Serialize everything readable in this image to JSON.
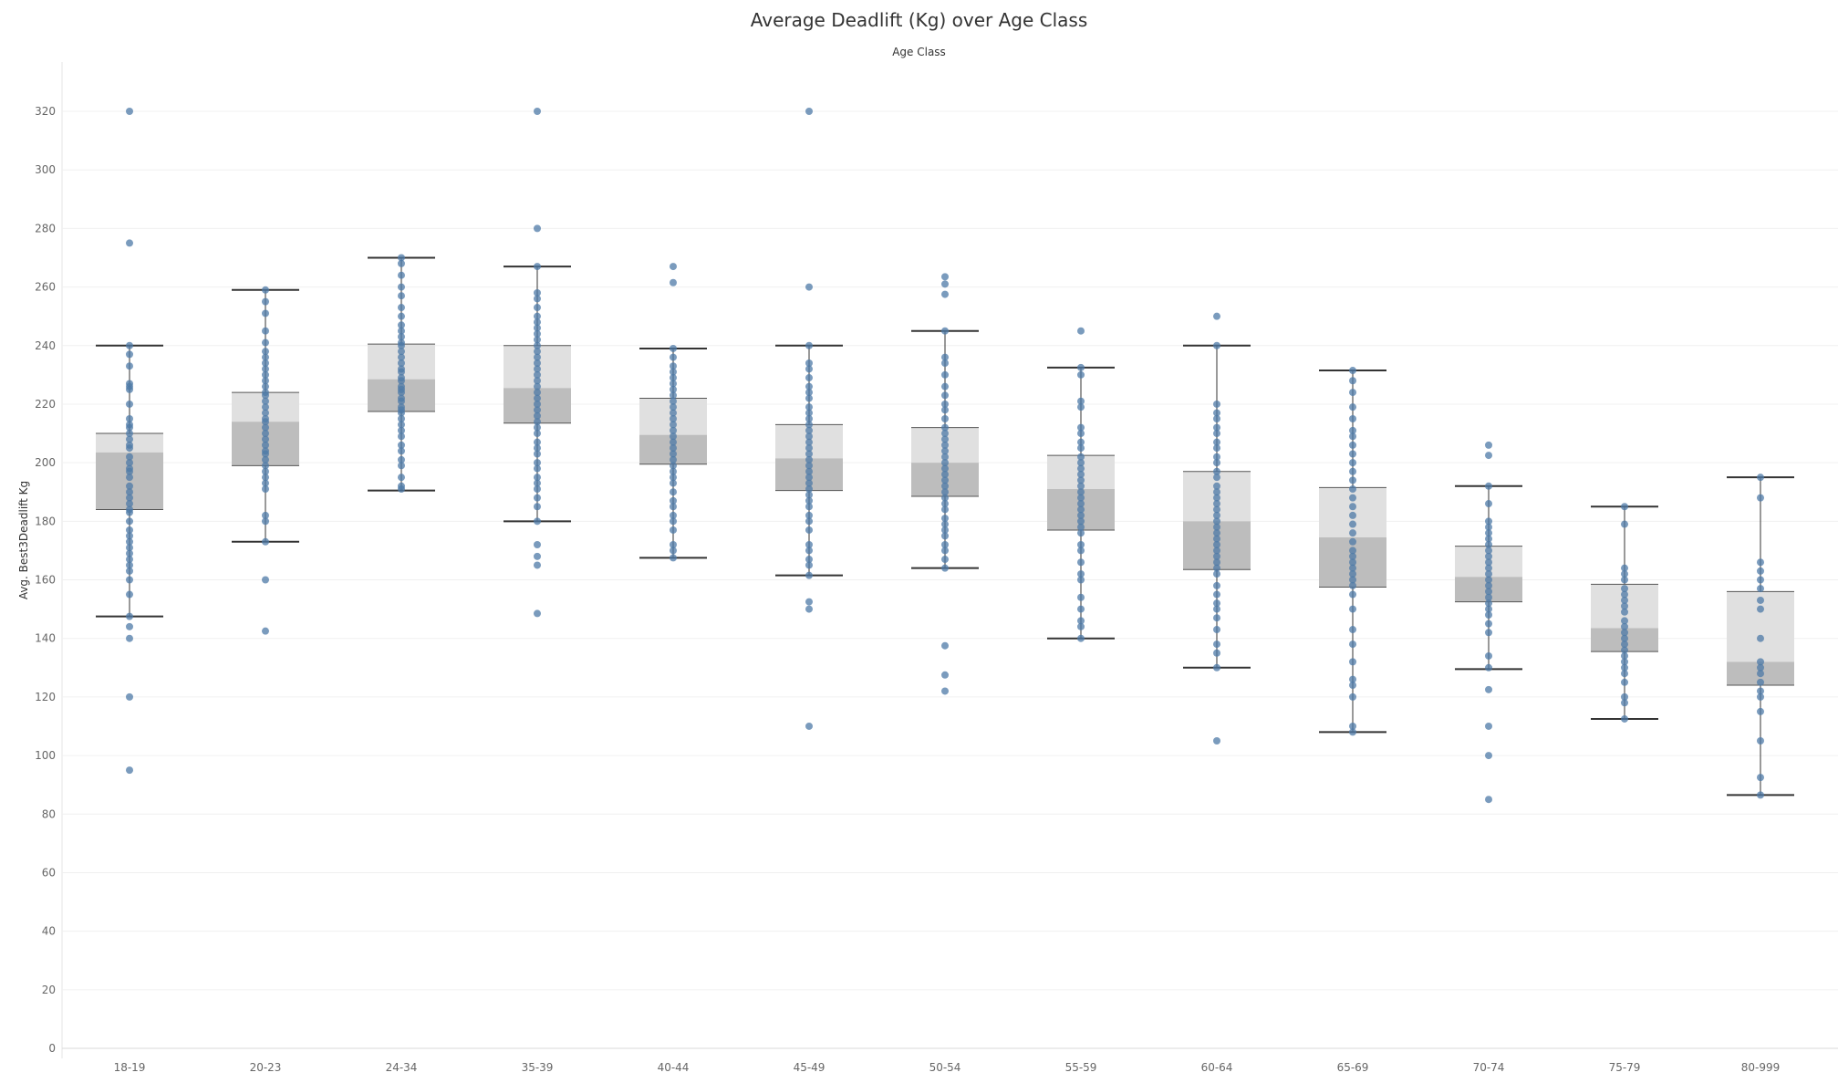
{
  "chart_data": {
    "type": "boxplot",
    "title": "Average Deadlift (Kg) over Age Class",
    "xlabel": "Age Class",
    "ylabel": "Avg. Best3Deadlift Kg",
    "ylim": [
      0,
      330
    ],
    "yticks": [
      0,
      20,
      40,
      60,
      80,
      100,
      120,
      140,
      160,
      180,
      200,
      220,
      240,
      260,
      280,
      300,
      320
    ],
    "grid": true,
    "colors": {
      "points": "#4e79a7",
      "box_upper": "#e0e0e0",
      "box_lower": "#bdbdbd",
      "whisker": "#333333"
    },
    "categories": [
      "18-19",
      "20-23",
      "24-34",
      "35-39",
      "40-44",
      "45-49",
      "50-54",
      "55-59",
      "60-64",
      "65-69",
      "70-74",
      "75-79",
      "80-999"
    ],
    "boxes": [
      {
        "category": "18-19",
        "whisker_low": 147.5,
        "q1": 184,
        "median": 203.5,
        "q3": 210,
        "whisker_high": 240,
        "points": [
          320,
          275,
          240,
          237,
          233,
          227,
          226,
          225,
          220,
          215,
          213,
          212,
          210,
          208,
          206,
          205,
          202,
          200,
          198,
          197,
          195,
          192,
          190,
          188,
          186,
          184,
          183,
          180,
          177,
          175,
          173,
          171,
          169,
          167,
          165,
          163,
          160,
          155,
          147.5,
          144,
          140,
          120,
          95
        ]
      },
      {
        "category": "20-23",
        "whisker_low": 173,
        "q1": 199,
        "median": 214,
        "q3": 224,
        "whisker_high": 259,
        "points": [
          259,
          255,
          251,
          245,
          241,
          238,
          236,
          234,
          232,
          230,
          228,
          226,
          224,
          223,
          221,
          219,
          217,
          215,
          214,
          212,
          210,
          208,
          206,
          204,
          203,
          201,
          199,
          197,
          195,
          193,
          191,
          182,
          180,
          173,
          160,
          142.5
        ]
      },
      {
        "category": "24-34",
        "whisker_low": 190.5,
        "q1": 217.5,
        "median": 228.5,
        "q3": 240.5,
        "whisker_high": 270,
        "points": [
          270,
          268,
          264,
          260,
          257,
          253,
          250,
          247,
          245,
          243,
          241,
          240,
          238,
          236,
          234,
          232,
          231,
          229,
          228,
          226,
          225,
          224,
          222,
          221,
          219,
          218,
          217,
          215,
          213,
          211,
          209,
          206,
          204,
          201,
          199,
          195,
          192,
          191
        ]
      },
      {
        "category": "35-39",
        "whisker_low": 180,
        "q1": 213.5,
        "median": 225.5,
        "q3": 240,
        "whisker_high": 267,
        "points": [
          320,
          280,
          267,
          258,
          256,
          253,
          250,
          248,
          246,
          244,
          242,
          240,
          238,
          236,
          234,
          232,
          230,
          228,
          226,
          224,
          222,
          220,
          218,
          216,
          214,
          212,
          210,
          207,
          205,
          203,
          200,
          198,
          195,
          193,
          191,
          188,
          185,
          180,
          172,
          168,
          165,
          148.5
        ]
      },
      {
        "category": "40-44",
        "whisker_low": 167.5,
        "q1": 199.5,
        "median": 209.5,
        "q3": 222,
        "whisker_high": 239,
        "points": [
          267,
          261.5,
          239,
          236,
          233,
          231,
          229,
          227,
          225,
          223,
          221,
          219,
          217,
          215,
          213,
          211,
          209,
          207,
          205,
          203,
          201,
          199,
          197,
          195,
          193,
          190,
          187,
          185,
          182,
          180,
          177,
          172,
          170,
          167.5
        ]
      },
      {
        "category": "45-49",
        "whisker_low": 161.5,
        "q1": 190.5,
        "median": 201.5,
        "q3": 213,
        "whisker_high": 240,
        "points": [
          320,
          260,
          240,
          234,
          232,
          229,
          226,
          224,
          222,
          219,
          217,
          215,
          213,
          211,
          209,
          207,
          205,
          203,
          201,
          199,
          197,
          195,
          193,
          191,
          189,
          187,
          185,
          182,
          180,
          177,
          172,
          170,
          167,
          165,
          161.5,
          152.5,
          150,
          110
        ]
      },
      {
        "category": "50-54",
        "whisker_low": 164,
        "q1": 188.5,
        "median": 200,
        "q3": 212,
        "whisker_high": 245,
        "points": [
          263.5,
          261,
          257.5,
          245,
          236,
          234,
          230,
          226,
          223,
          220,
          218,
          215,
          212,
          210,
          208,
          206,
          204,
          202,
          200,
          198,
          196,
          194,
          192,
          190,
          188,
          186,
          184,
          181,
          179,
          177,
          175,
          172,
          170,
          167,
          164,
          137.5,
          127.5,
          122
        ]
      },
      {
        "category": "55-59",
        "whisker_low": 140,
        "q1": 177,
        "median": 191,
        "q3": 202.5,
        "whisker_high": 232.5,
        "points": [
          245,
          232.5,
          230,
          221,
          219,
          212,
          210,
          207,
          205,
          202,
          200,
          198,
          196,
          194,
          192,
          190,
          188,
          186,
          184,
          182,
          180,
          178,
          176,
          172,
          170,
          166,
          162,
          160,
          154,
          150,
          146,
          144,
          140
        ]
      },
      {
        "category": "60-64",
        "whisker_low": 130,
        "q1": 163.5,
        "median": 180,
        "q3": 197,
        "whisker_high": 240,
        "points": [
          250,
          240,
          220,
          217,
          215,
          212,
          210,
          207,
          205,
          202,
          200,
          197,
          195,
          192,
          190,
          188,
          186,
          184,
          182,
          180,
          178,
          176,
          174,
          172,
          170,
          168,
          166,
          164,
          162,
          158,
          155,
          152,
          150,
          147,
          143,
          138,
          135,
          130,
          105
        ]
      },
      {
        "category": "65-69",
        "whisker_low": 108,
        "q1": 157.5,
        "median": 174.5,
        "q3": 191.5,
        "whisker_high": 231.5,
        "points": [
          231.5,
          228,
          224,
          219,
          215,
          211,
          209,
          206,
          203,
          200,
          197,
          194,
          191,
          188,
          185,
          182,
          179,
          176,
          173,
          170,
          168,
          166,
          164,
          162,
          160,
          158,
          155,
          150,
          143,
          138,
          132,
          126,
          124,
          120,
          110,
          108
        ]
      },
      {
        "category": "70-74",
        "whisker_low": 129.5,
        "q1": 152.5,
        "median": 161,
        "q3": 171.5,
        "whisker_high": 192,
        "points": [
          206,
          202.5,
          192,
          186,
          180,
          178,
          176,
          174,
          172,
          170,
          168,
          166,
          164,
          162,
          160,
          158,
          156,
          154,
          152,
          150,
          148,
          145,
          142,
          134,
          130,
          122.5,
          110,
          100,
          85
        ]
      },
      {
        "category": "75-79",
        "whisker_low": 112.5,
        "q1": 135.5,
        "median": 143.5,
        "q3": 158.5,
        "whisker_high": 185,
        "points": [
          185,
          179,
          164,
          162,
          160,
          157,
          155,
          153,
          151,
          149,
          146,
          144,
          142,
          140,
          138,
          136,
          134,
          132,
          130,
          128,
          125,
          120,
          118,
          112.5
        ]
      },
      {
        "category": "80-999",
        "whisker_low": 86.5,
        "q1": 124,
        "median": 132,
        "q3": 156,
        "whisker_high": 195,
        "points": [
          195,
          188,
          166,
          163,
          160,
          157,
          153,
          150,
          140,
          132,
          130,
          128,
          125,
          122,
          120,
          115,
          105,
          92.5,
          86.5
        ]
      }
    ]
  }
}
